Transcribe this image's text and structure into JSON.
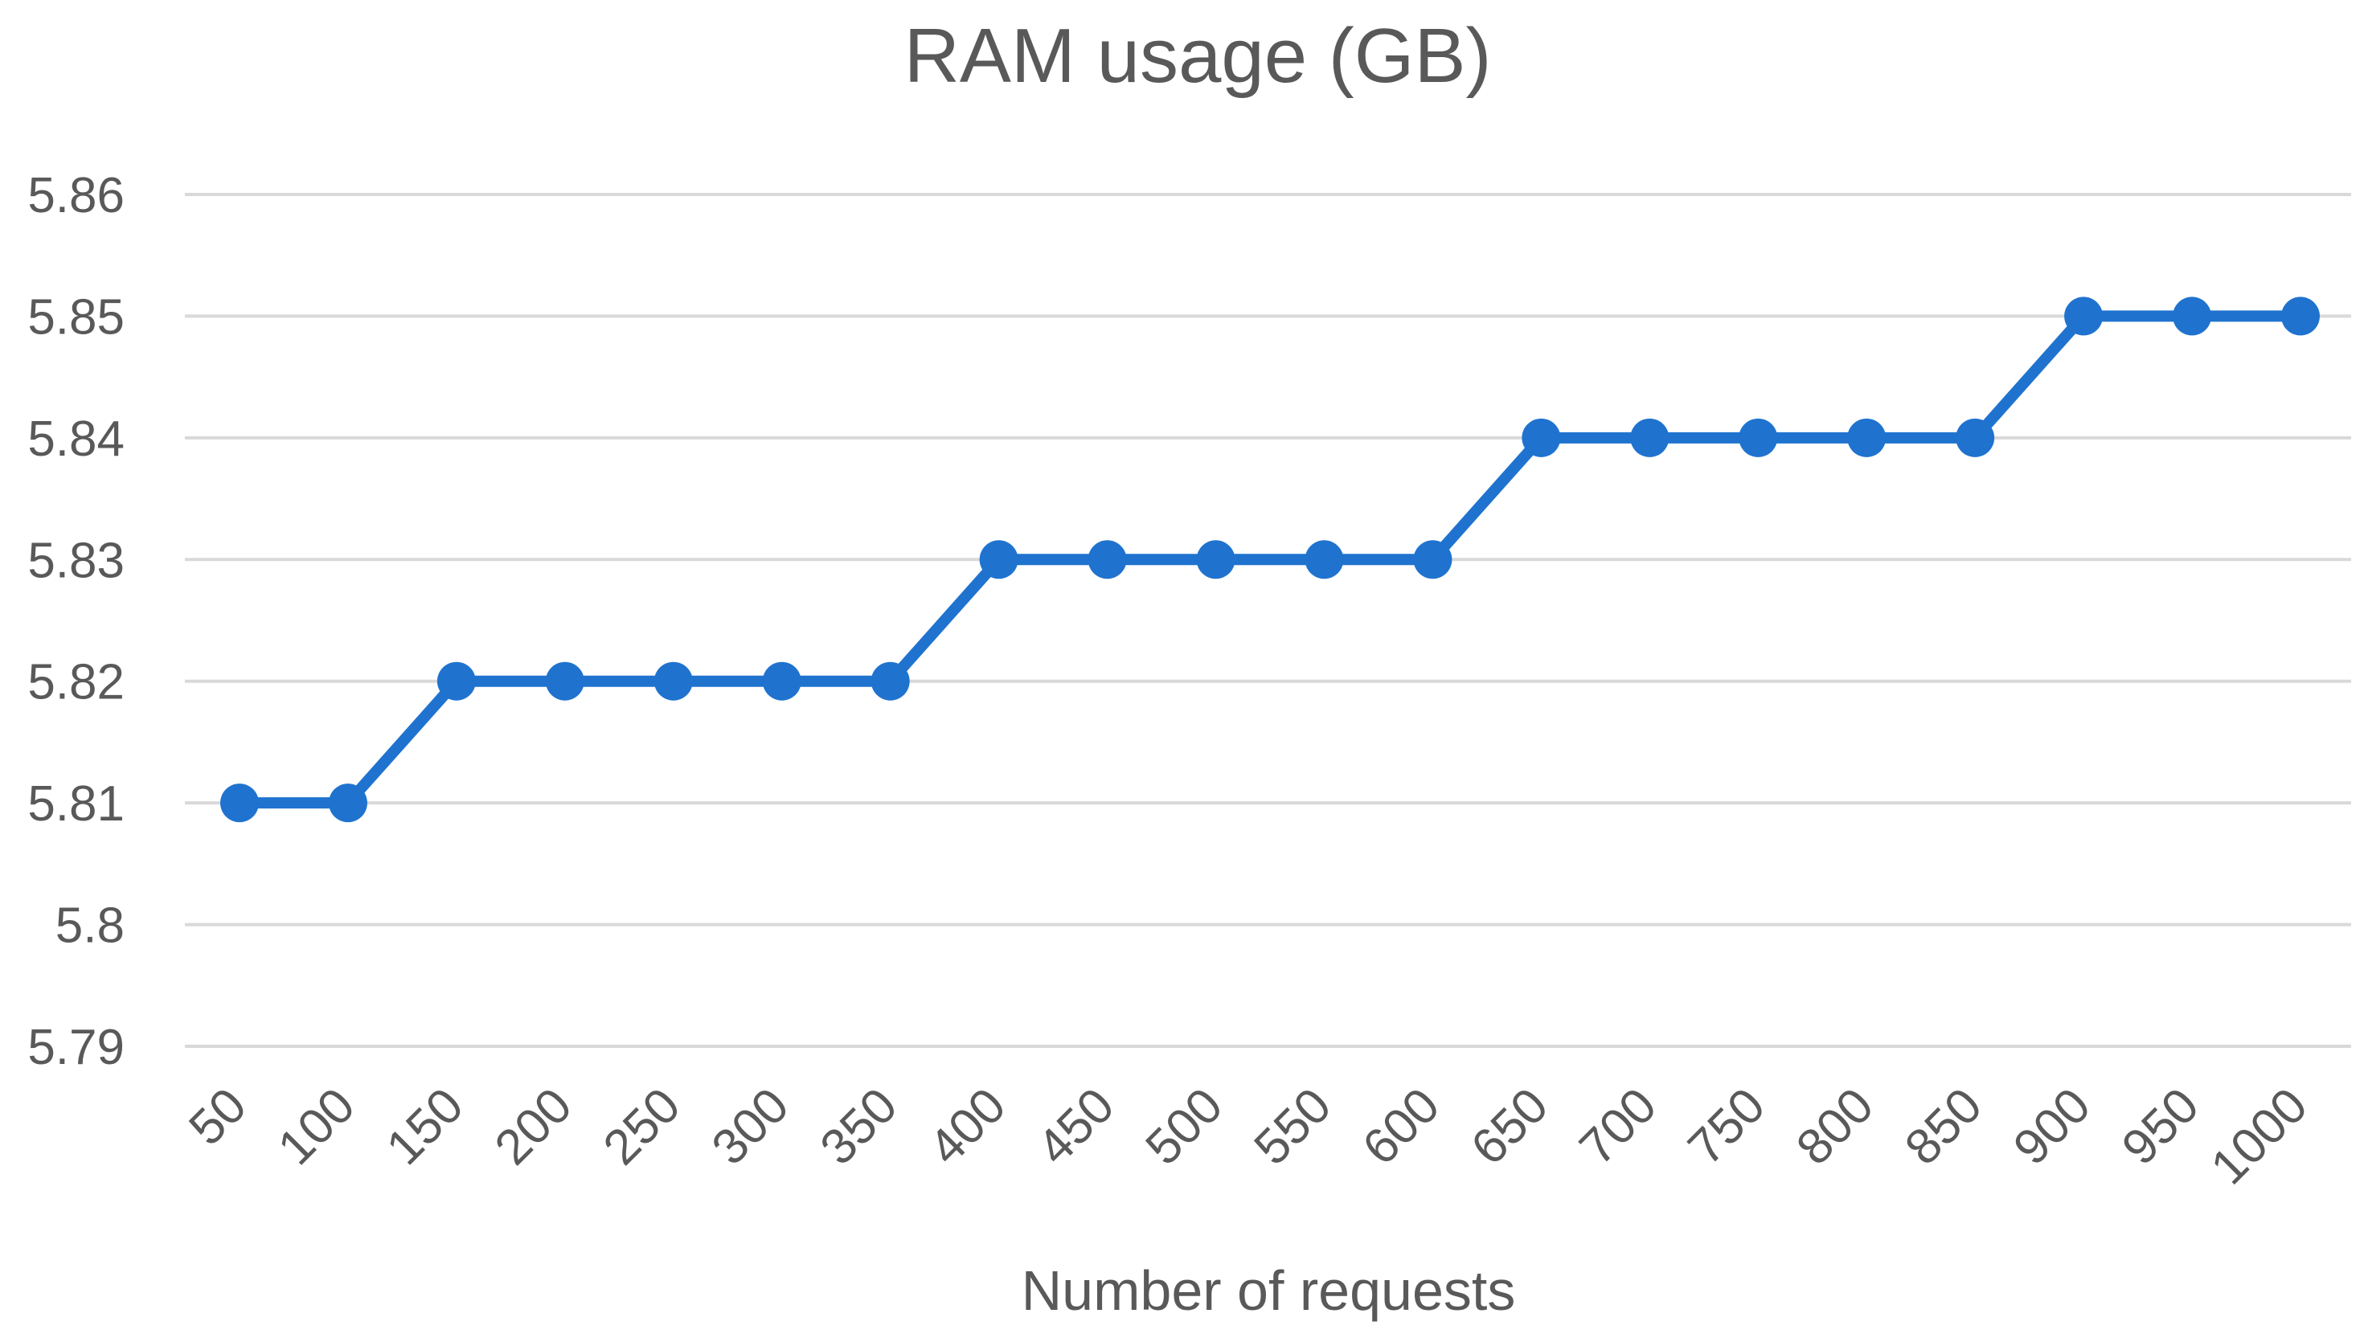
{
  "chart_data": {
    "type": "line",
    "title": "RAM usage (GB)",
    "xlabel": "Number of requests",
    "ylabel": "",
    "categories": [
      "50",
      "100",
      "150",
      "200",
      "250",
      "300",
      "350",
      "400",
      "450",
      "500",
      "550",
      "600",
      "650",
      "700",
      "750",
      "800",
      "850",
      "900",
      "950",
      "1000"
    ],
    "yticks": [
      "5.86",
      "5.85",
      "5.84",
      "5.83",
      "5.82",
      "5.81",
      "5.8",
      "5.79"
    ],
    "ylim": [
      5.79,
      5.86
    ],
    "grid": true,
    "legend": "none",
    "series": [
      {
        "color": "#1f73cf",
        "values": [
          5.81,
          5.81,
          5.82,
          5.82,
          5.82,
          5.82,
          5.82,
          5.83,
          5.83,
          5.83,
          5.83,
          5.83,
          5.84,
          5.84,
          5.84,
          5.84,
          5.84,
          5.85,
          5.85,
          5.85
        ]
      }
    ]
  }
}
